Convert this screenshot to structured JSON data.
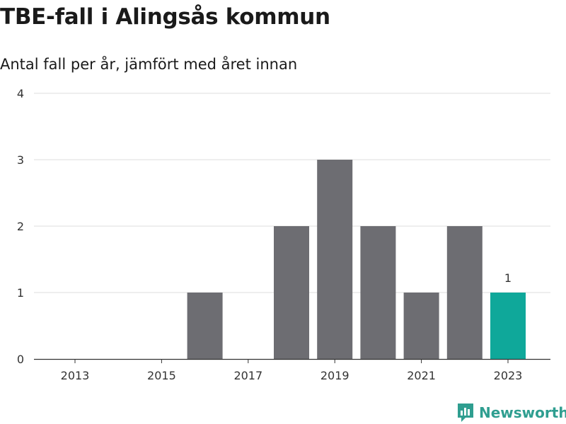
{
  "header": {
    "title": "TBE-fall i Alingsås kommun",
    "subtitle": "Antal fall per år, jämfört med året innan"
  },
  "brand": {
    "name": "Newsworthy",
    "icon": "newsworthy-logo-icon",
    "color": "#2f9e90"
  },
  "colors": {
    "bar": "#6d6d72",
    "highlight": "#0fa89a",
    "grid": "#dddddd",
    "axis": "#333333"
  },
  "chart_data": {
    "type": "bar",
    "categories": [
      2013,
      2014,
      2015,
      2016,
      2017,
      2018,
      2019,
      2020,
      2021,
      2022,
      2023
    ],
    "values": [
      0,
      0,
      0,
      1,
      0,
      2,
      3,
      2,
      1,
      2,
      1
    ],
    "highlight_category": 2023,
    "highlight_label": "1",
    "x_tick_labels": [
      "2013",
      "2015",
      "2017",
      "2019",
      "2021",
      "2023"
    ],
    "y_ticks": [
      0,
      1,
      2,
      3,
      4
    ],
    "ylim": [
      0,
      4
    ],
    "grid": true
  }
}
